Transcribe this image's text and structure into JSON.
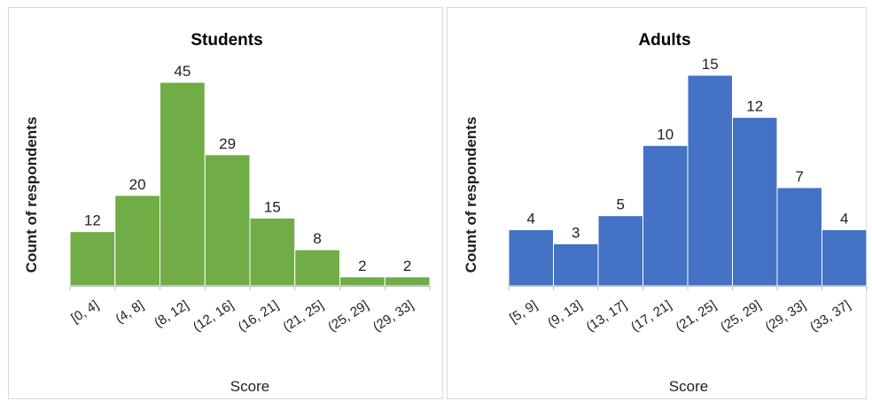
{
  "chart_data": [
    {
      "type": "bar",
      "title": "Students",
      "xlabel": "Score",
      "ylabel": "Count of respondents",
      "categories": [
        "[0, 4]",
        "(4, 8]",
        "(8, 12]",
        "(12, 16]",
        "(16, 21]",
        "(21, 25]",
        "(25, 29]",
        "(29, 33]"
      ],
      "values": [
        12,
        20,
        45,
        29,
        15,
        8,
        2,
        2
      ],
      "ylim": [
        0,
        45
      ],
      "color": "#70ad47",
      "grid": false,
      "legend": "none"
    },
    {
      "type": "bar",
      "title": "Adults",
      "xlabel": "Score",
      "ylabel": "Count of respondents",
      "categories": [
        "[5, 9]",
        "(9, 13]",
        "(13, 17]",
        "(17, 21]",
        "(21, 25]",
        "(25, 29]",
        "(29, 33]",
        "(33, 37]"
      ],
      "values": [
        4,
        3,
        5,
        10,
        15,
        12,
        7,
        4
      ],
      "ylim": [
        0,
        15
      ],
      "color": "#4472c4",
      "grid": false,
      "legend": "none"
    }
  ]
}
